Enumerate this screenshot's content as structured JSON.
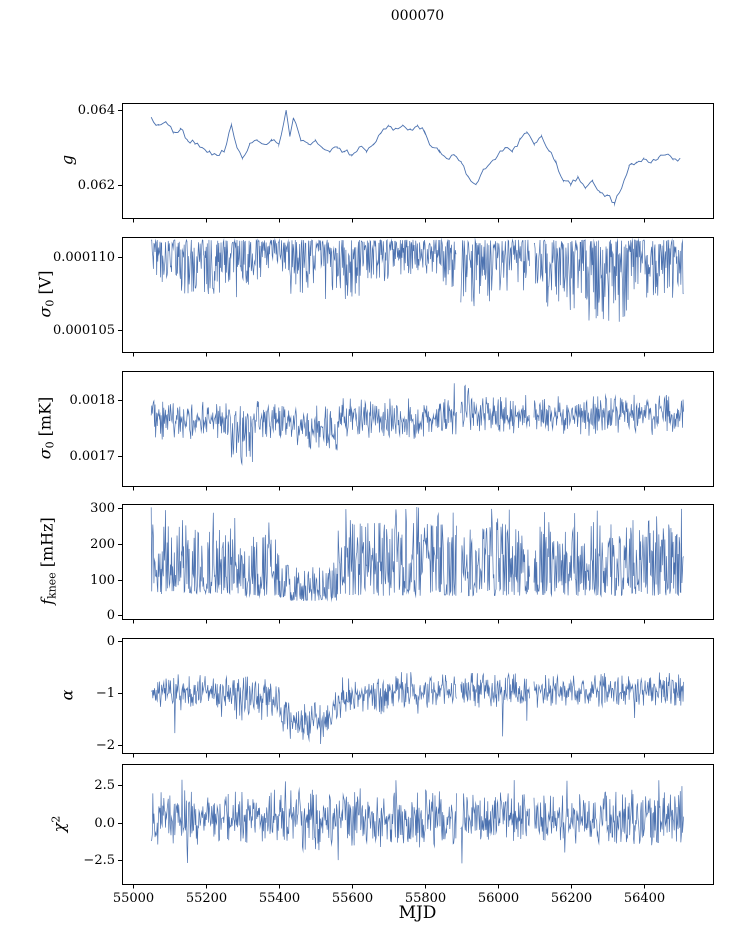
{
  "title": "000070",
  "color": "#4c72b0",
  "x_axis": {
    "label": "MJD",
    "lim": [
      54970,
      56590
    ],
    "data_range": [
      55050,
      56510
    ],
    "ticks": [
      55000,
      55200,
      55400,
      55600,
      55800,
      56000,
      56200,
      56400
    ],
    "tick_labels": [
      "55000",
      "55200",
      "55400",
      "55600",
      "55800",
      "56000",
      "56200",
      "56400"
    ]
  },
  "gaps": [
    [
      55888,
      55898
    ],
    [
      56088,
      56098
    ]
  ],
  "chart_data": [
    {
      "type": "line",
      "ylabel_pre": "g",
      "ylim": [
        0.0611,
        0.0642
      ],
      "yticks": [
        {
          "v": 0.062,
          "label": "0.062"
        },
        {
          "v": 0.064,
          "label": "0.064"
        }
      ],
      "jitter": 7e-05,
      "points": [
        [
          55050,
          0.0638
        ],
        [
          55070,
          0.0636
        ],
        [
          55090,
          0.0637
        ],
        [
          55110,
          0.0634
        ],
        [
          55130,
          0.0635
        ],
        [
          55150,
          0.0632
        ],
        [
          55170,
          0.0631
        ],
        [
          55190,
          0.063
        ],
        [
          55210,
          0.0629
        ],
        [
          55230,
          0.0628
        ],
        [
          55250,
          0.0629
        ],
        [
          55270,
          0.0636
        ],
        [
          55285,
          0.063
        ],
        [
          55300,
          0.0627
        ],
        [
          55320,
          0.0631
        ],
        [
          55340,
          0.0632
        ],
        [
          55360,
          0.0631
        ],
        [
          55380,
          0.0632
        ],
        [
          55400,
          0.0631
        ],
        [
          55420,
          0.064
        ],
        [
          55430,
          0.0633
        ],
        [
          55440,
          0.0638
        ],
        [
          55460,
          0.0632
        ],
        [
          55480,
          0.0631
        ],
        [
          55500,
          0.0632
        ],
        [
          55520,
          0.063
        ],
        [
          55540,
          0.0629
        ],
        [
          55560,
          0.063
        ],
        [
          55580,
          0.0629
        ],
        [
          55600,
          0.0628
        ],
        [
          55620,
          0.063
        ],
        [
          55640,
          0.0629
        ],
        [
          55660,
          0.0631
        ],
        [
          55680,
          0.0634
        ],
        [
          55700,
          0.0636
        ],
        [
          55720,
          0.0635
        ],
        [
          55740,
          0.0636
        ],
        [
          55760,
          0.0635
        ],
        [
          55780,
          0.0636
        ],
        [
          55800,
          0.0634
        ],
        [
          55820,
          0.063
        ],
        [
          55840,
          0.0629
        ],
        [
          55860,
          0.0627
        ],
        [
          55880,
          0.0628
        ],
        [
          55900,
          0.0626
        ],
        [
          55920,
          0.0622
        ],
        [
          55940,
          0.062
        ],
        [
          55960,
          0.0624
        ],
        [
          55980,
          0.0626
        ],
        [
          56000,
          0.0628
        ],
        [
          56020,
          0.063
        ],
        [
          56040,
          0.0629
        ],
        [
          56060,
          0.0632
        ],
        [
          56080,
          0.0634
        ],
        [
          56100,
          0.0631
        ],
        [
          56120,
          0.0633
        ],
        [
          56140,
          0.0629
        ],
        [
          56160,
          0.0626
        ],
        [
          56180,
          0.0621
        ],
        [
          56200,
          0.062
        ],
        [
          56220,
          0.0622
        ],
        [
          56240,
          0.0619
        ],
        [
          56260,
          0.0621
        ],
        [
          56280,
          0.0618
        ],
        [
          56300,
          0.0617
        ],
        [
          56320,
          0.0615
        ],
        [
          56340,
          0.0619
        ],
        [
          56360,
          0.0625
        ],
        [
          56380,
          0.0626
        ],
        [
          56400,
          0.0627
        ],
        [
          56420,
          0.0626
        ],
        [
          56440,
          0.0627
        ],
        [
          56460,
          0.0628
        ],
        [
          56480,
          0.0627
        ],
        [
          56500,
          0.0627
        ]
      ]
    },
    {
      "type": "noisy",
      "ylabel_pre": "σ",
      "ylabel_sub": "0",
      "ylabel_post": " [V]",
      "ylim": [
        0.0001035,
        0.0001114
      ],
      "yticks": [
        {
          "v": 0.000105,
          "label": "0.000105"
        },
        {
          "v": 0.00011,
          "label": "0.000110"
        }
      ],
      "skew": "top",
      "band": [
        [
          55050,
          55130,
          0.0001082,
          0.0001112
        ],
        [
          55130,
          55200,
          0.0001075,
          0.0001112
        ],
        [
          55200,
          55290,
          0.0001069,
          0.0001112
        ],
        [
          55290,
          55360,
          0.000108,
          0.0001112
        ],
        [
          55360,
          55430,
          0.000109,
          0.0001112
        ],
        [
          55430,
          55520,
          0.0001074,
          0.0001112
        ],
        [
          55520,
          55620,
          0.0001071,
          0.0001112
        ],
        [
          55620,
          55700,
          0.0001082,
          0.0001112
        ],
        [
          55700,
          55850,
          0.0001088,
          0.0001112
        ],
        [
          55850,
          55990,
          0.0001066,
          0.0001112
        ],
        [
          55990,
          56130,
          0.0001077,
          0.0001112
        ],
        [
          56130,
          56250,
          0.0001063,
          0.0001112
        ],
        [
          56250,
          56360,
          0.0001053,
          0.0001112
        ],
        [
          56360,
          56510,
          0.0001072,
          0.0001112
        ]
      ]
    },
    {
      "type": "noisy",
      "ylabel_pre": "σ",
      "ylabel_sub": "0",
      "ylabel_post": " [mK]",
      "ylim": [
        0.001645,
        0.001853
      ],
      "yticks": [
        {
          "v": 0.0017,
          "label": "0.0017"
        },
        {
          "v": 0.0018,
          "label": "0.0018"
        }
      ],
      "skew": "mid",
      "band": [
        [
          55050,
          55270,
          0.001725,
          0.0018
        ],
        [
          55270,
          55330,
          0.001685,
          0.00179
        ],
        [
          55330,
          55450,
          0.00173,
          0.0018
        ],
        [
          55450,
          55560,
          0.001705,
          0.001795
        ],
        [
          55560,
          55880,
          0.00173,
          0.001805
        ],
        [
          55880,
          55920,
          0.00173,
          0.00184
        ],
        [
          55920,
          56510,
          0.001735,
          0.00181
        ]
      ]
    },
    {
      "type": "noisy",
      "ylabel_pre": "f",
      "ylabel_sub": "knee",
      "ylabel_post": " [mHz]",
      "ylim": [
        -10,
        312
      ],
      "yticks": [
        {
          "v": 0,
          "label": "0"
        },
        {
          "v": 100,
          "label": "100"
        },
        {
          "v": 200,
          "label": "200"
        },
        {
          "v": 300,
          "label": "300"
        }
      ],
      "skew": "low",
      "spike_hi": 305,
      "spike_p": 0.02,
      "band": [
        [
          55050,
          55290,
          60,
          255
        ],
        [
          55290,
          55330,
          55,
          200
        ],
        [
          55330,
          55400,
          55,
          230
        ],
        [
          55400,
          55430,
          50,
          160
        ],
        [
          55430,
          55560,
          40,
          135
        ],
        [
          55560,
          56510,
          55,
          265
        ]
      ]
    },
    {
      "type": "noisy",
      "ylabel_pre": "α",
      "ylim": [
        -2.15,
        0.05
      ],
      "yticks": [
        {
          "v": 0,
          "label": "0"
        },
        {
          "v": -1,
          "label": "−1"
        },
        {
          "v": -2,
          "label": "−2"
        }
      ],
      "skew": "mid",
      "spike_lo": -1.85,
      "spike_p_lo": 0.008,
      "band": [
        [
          55050,
          55290,
          -1.35,
          -0.62
        ],
        [
          55290,
          55400,
          -1.55,
          -0.68
        ],
        [
          55400,
          55430,
          -1.75,
          -0.95
        ],
        [
          55430,
          55545,
          -2.0,
          -1.15
        ],
        [
          55545,
          55570,
          -1.6,
          -0.8
        ],
        [
          55570,
          55700,
          -1.45,
          -0.7
        ],
        [
          55700,
          56510,
          -1.3,
          -0.6
        ]
      ]
    },
    {
      "type": "noisy",
      "ylabel_pre": "χ",
      "ylabel_sup": "2",
      "ylim": [
        -4.1,
        3.9
      ],
      "yticks": [
        {
          "v": 2.5,
          "label": "2.5"
        },
        {
          "v": 0,
          "label": "0.0"
        },
        {
          "v": -2.5,
          "label": "−2.5"
        }
      ],
      "skew": "mid",
      "spike_hi": 2.9,
      "spike_p": 0.01,
      "spike_lo": -2.9,
      "spike_p_lo": 0.008,
      "band": [
        [
          55050,
          56510,
          -1.7,
          2.2
        ]
      ]
    }
  ]
}
